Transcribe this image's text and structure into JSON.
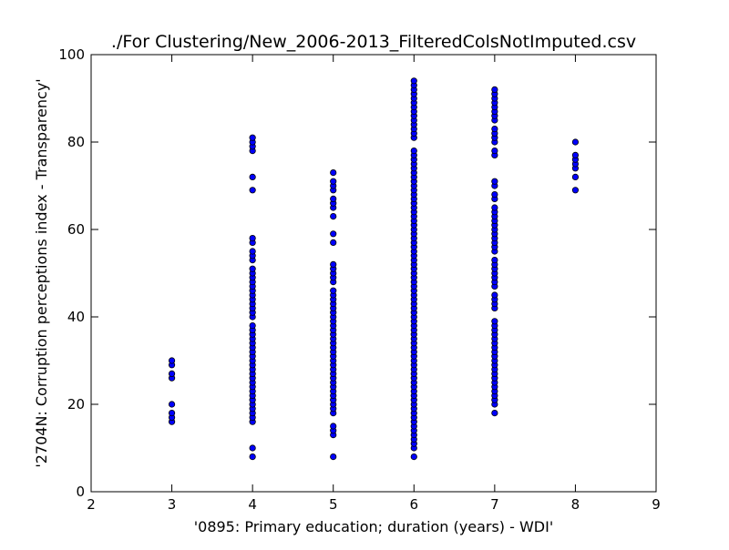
{
  "chart_data": {
    "type": "scatter",
    "title": "./For Clustering/New_2006-2013_FilteredColsNotImputed.csv",
    "xlabel": "'0895: Primary education; duration  (years) - WDI'",
    "ylabel": "'2704N: Corruption perceptions index - Transparency'",
    "xlim": [
      2,
      9
    ],
    "ylim": [
      0,
      100
    ],
    "xticks": [
      2,
      3,
      4,
      5,
      6,
      7,
      8,
      9
    ],
    "yticks": [
      0,
      20,
      40,
      60,
      80,
      100
    ],
    "marker_color": "#0000ff",
    "marker_edge_color": "#000000",
    "grid": false,
    "legend": "none",
    "series": [
      {
        "x": 3,
        "y": [
          16,
          17,
          18,
          20,
          26,
          27,
          29,
          30
        ]
      },
      {
        "x": 4,
        "y": [
          8,
          10,
          16,
          17,
          18,
          19,
          20,
          21,
          22,
          23,
          24,
          25,
          26,
          27,
          28,
          29,
          30,
          31,
          32,
          33,
          34,
          35,
          36,
          37,
          38,
          40,
          41,
          42,
          43,
          44,
          45,
          46,
          47,
          48,
          49,
          50,
          51,
          53,
          54,
          55,
          57,
          58,
          69,
          72,
          78,
          79,
          80,
          81
        ]
      },
      {
        "x": 5,
        "y": [
          8,
          13,
          14,
          15,
          18,
          19,
          20,
          21,
          22,
          23,
          24,
          25,
          26,
          27,
          28,
          29,
          30,
          31,
          32,
          33,
          34,
          35,
          36,
          37,
          38,
          39,
          40,
          41,
          42,
          43,
          44,
          45,
          46,
          48,
          49,
          50,
          51,
          52,
          57,
          59,
          63,
          65,
          66,
          67,
          69,
          70,
          71,
          73
        ]
      },
      {
        "x": 6,
        "y": [
          8,
          10,
          11,
          12,
          13,
          14,
          15,
          16,
          17,
          18,
          19,
          20,
          21,
          22,
          23,
          24,
          25,
          26,
          27,
          28,
          29,
          30,
          31,
          32,
          33,
          34,
          35,
          36,
          37,
          38,
          39,
          40,
          41,
          42,
          43,
          44,
          45,
          46,
          47,
          48,
          49,
          50,
          51,
          52,
          53,
          54,
          55,
          56,
          57,
          58,
          59,
          60,
          61,
          62,
          63,
          64,
          65,
          66,
          67,
          68,
          69,
          70,
          71,
          72,
          73,
          74,
          75,
          76,
          77,
          78,
          81,
          82,
          83,
          84,
          85,
          86,
          87,
          88,
          89,
          90,
          91,
          92,
          93,
          94
        ]
      },
      {
        "x": 7,
        "y": [
          18,
          20,
          21,
          22,
          23,
          24,
          25,
          26,
          27,
          28,
          29,
          30,
          31,
          32,
          33,
          34,
          35,
          36,
          37,
          38,
          39,
          42,
          43,
          44,
          45,
          47,
          48,
          49,
          50,
          51,
          52,
          53,
          55,
          56,
          57,
          58,
          59,
          60,
          61,
          62,
          63,
          64,
          65,
          67,
          68,
          70,
          71,
          77,
          78,
          80,
          81,
          82,
          83,
          85,
          86,
          87,
          88,
          89,
          90,
          91,
          92
        ]
      },
      {
        "x": 8,
        "y": [
          69,
          72,
          74,
          75,
          76,
          77,
          80
        ]
      }
    ]
  }
}
